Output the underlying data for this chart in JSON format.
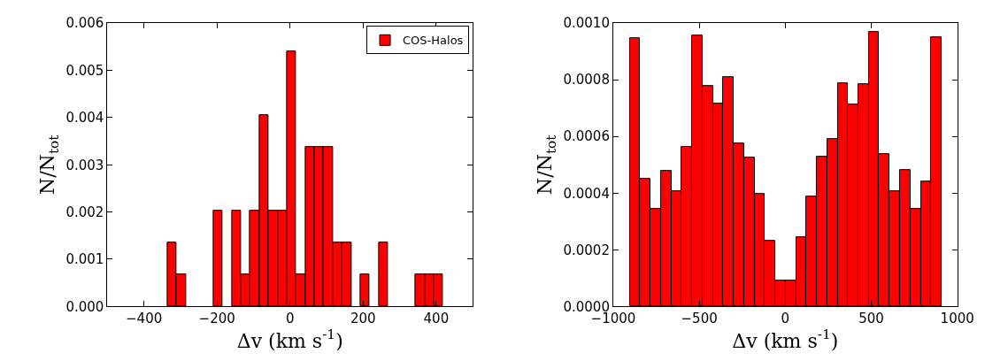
{
  "chart_data": [
    {
      "type": "histogram",
      "xlabel": "Δv (km s$^{-1}$)",
      "ylabel": "N/N$_{tot}$",
      "xlim": [
        -500,
        500
      ],
      "xticks": [
        {
          "value": -400,
          "label": "−400"
        },
        {
          "value": -200,
          "label": "−200"
        },
        0,
        200,
        400
      ],
      "ylim": [
        0,
        0.006
      ],
      "yticks": [
        {
          "value": 0,
          "label": "0.000"
        },
        0.001,
        0.002,
        0.003,
        0.004,
        0.005,
        0.006
      ],
      "legend": "top right",
      "bins": [
        -335,
        -310,
        -285,
        -260,
        -234,
        -209,
        -184,
        -159,
        -134,
        -109,
        -84,
        -59,
        -33,
        -8,
        17,
        42,
        67,
        92,
        117,
        142,
        168,
        193,
        218,
        243,
        268,
        293,
        318,
        343,
        369,
        394,
        419
      ],
      "series": [
        {
          "name": "COS-Halos",
          "color": "#ff0000",
          "values": [
            0.00135,
            0.00068,
            0,
            0,
            0,
            0.00203,
            0,
            0.00203,
            0.00068,
            0.00203,
            0.00405,
            0.00203,
            0.00203,
            0.0054,
            0.00068,
            0.00338,
            0.00338,
            0.00338,
            0.00135,
            0.00135,
            0,
            0.00068,
            0,
            0.00135,
            0,
            0,
            0,
            0.00068,
            0.00068,
            0.00068
          ]
        }
      ]
    },
    {
      "type": "histogram",
      "xlabel": "Δv (km s$^{-1}$)",
      "ylabel": "N/N$_{tot}$",
      "xlim": [
        -1000,
        1000
      ],
      "xticks": [
        {
          "value": -1000,
          "label": "−1000"
        },
        {
          "value": -500,
          "label": "−500"
        },
        0,
        500,
        1000
      ],
      "ylim": [
        0,
        0.001
      ],
      "yticks": [
        {
          "value": 0,
          "label": "0.0000"
        },
        {
          "value": 0.0002,
          "label": "0.0002"
        },
        {
          "value": 0.0004,
          "label": "0.0004"
        },
        {
          "value": 0.0006,
          "label": "0.0006"
        },
        {
          "value": 0.0008,
          "label": "0.0008"
        },
        {
          "value": 0.001,
          "label": "0.0010"
        }
      ],
      "bins": [
        -904,
        -844,
        -783,
        -723,
        -662,
        -602,
        -541,
        -481,
        -421,
        -360,
        -300,
        -239,
        -179,
        -118,
        -58,
        3,
        63,
        123,
        184,
        244,
        305,
        365,
        426,
        486,
        546,
        607,
        667,
        728,
        788,
        849,
        909
      ],
      "series": [
        {
          "color": "#ff0000",
          "values": [
            0.000948,
            0.000449,
            0.000343,
            0.000478,
            0.000407,
            0.000564,
            0.000957,
            0.000778,
            0.000717,
            0.000811,
            0.000574,
            0.000526,
            0.000396,
            0.000232,
            9e-05,
            9e-05,
            0.000245,
            0.000389,
            0.000529,
            0.00059,
            0.000789,
            0.000714,
            0.000785,
            0.00097,
            0.000539,
            0.000407,
            0.000483,
            0.000343,
            0.000442,
            0.000951
          ]
        }
      ]
    }
  ]
}
